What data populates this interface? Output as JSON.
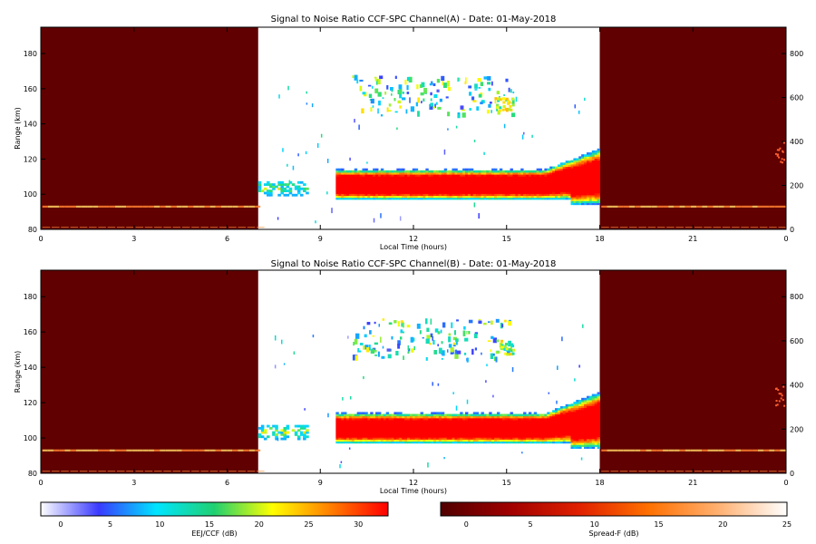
{
  "chart_data": [
    {
      "type": "heatmap",
      "title": "Signal to Noise Ratio CCF-SPC Channel(A) - Date: 01-May-2018",
      "xlabel": "Local Time (hours)",
      "ylabel": "Range (km)",
      "x_ticks": [
        "0",
        "3",
        "6",
        "9",
        "12",
        "15",
        "18",
        "21",
        "0"
      ],
      "y_ticks": [
        "80",
        "100",
        "120",
        "140",
        "160",
        "180"
      ],
      "y2_ticks": [
        "0",
        "200",
        "400",
        "600",
        "800"
      ],
      "xlim": [
        0,
        24
      ],
      "ylim": [
        80,
        195
      ],
      "y2lim": [
        0,
        920
      ],
      "night_spans_hours": [
        [
          0,
          7
        ],
        [
          18,
          24
        ]
      ],
      "eej_layer": {
        "t_start": 9.5,
        "t_end": 18,
        "range_low_km": 98,
        "range_high_km": 112,
        "peak_db": 30
      },
      "eej_echoes_early": {
        "t_start": 7,
        "t_end": 8.6,
        "range_low_km": 99,
        "range_high_km": 107
      },
      "ccf_echoes": {
        "t_start": 11.5,
        "t_end": 15.2,
        "range_low_km": 145,
        "range_high_km": 168
      },
      "spread_f_trace_km": 93
    },
    {
      "type": "heatmap",
      "title": "Signal to Noise Ratio CCF-SPC Channel(B) - Date: 01-May-2018",
      "xlabel": "Local Time (hours)",
      "ylabel": "Range (km)",
      "x_ticks": [
        "0",
        "3",
        "6",
        "9",
        "12",
        "15",
        "18",
        "21",
        "0"
      ],
      "y_ticks": [
        "80",
        "100",
        "120",
        "140",
        "160",
        "180"
      ],
      "y2_ticks": [
        "0",
        "200",
        "400",
        "600",
        "800"
      ],
      "xlim": [
        0,
        24
      ],
      "ylim": [
        80,
        195
      ],
      "y2lim": [
        0,
        920
      ],
      "night_spans_hours": [
        [
          0,
          7
        ],
        [
          18,
          24
        ]
      ],
      "eej_layer": {
        "t_start": 9.5,
        "t_end": 18,
        "range_low_km": 98,
        "range_high_km": 112,
        "peak_db": 30
      },
      "eej_echoes_early": {
        "t_start": 7,
        "t_end": 8.6,
        "range_low_km": 99,
        "range_high_km": 107
      },
      "ccf_echoes": {
        "t_start": 11.5,
        "t_end": 15.2,
        "range_low_km": 145,
        "range_high_km": 168
      },
      "spread_f_trace_km": 93
    }
  ],
  "colorbars": [
    {
      "label": "EEJ/CCF (dB)",
      "ticks": [
        "0",
        "5",
        "10",
        "15",
        "20",
        "25",
        "30"
      ],
      "range": [
        -2,
        33
      ],
      "colors": [
        "#ffffff",
        "#3a3aff",
        "#00e5ff",
        "#20d070",
        "#ffff00",
        "#ff8000",
        "#ff0000"
      ]
    },
    {
      "label": "Spread-F (dB)",
      "ticks": [
        "0",
        "5",
        "10",
        "15",
        "20",
        "25"
      ],
      "range": [
        -2,
        25
      ],
      "colors": [
        "#500000",
        "#a00000",
        "#e02000",
        "#ff7000",
        "#ffb070",
        "#ffffff"
      ]
    }
  ],
  "colors": {
    "night_background": "#600000",
    "day_background": "#ffffff"
  }
}
